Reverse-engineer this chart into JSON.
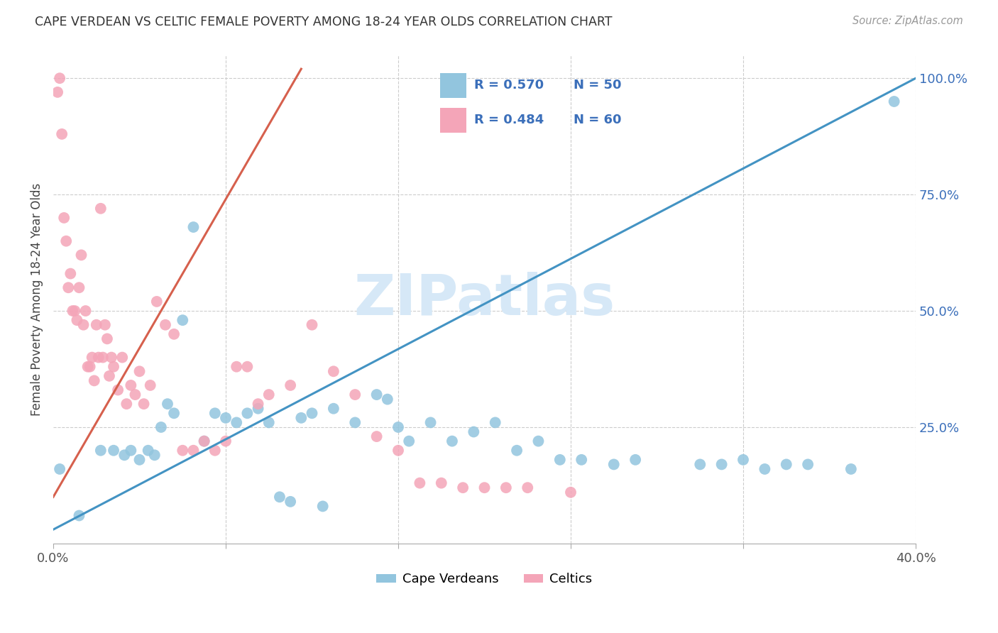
{
  "title": "CAPE VERDEAN VS CELTIC FEMALE POVERTY AMONG 18-24 YEAR OLDS CORRELATION CHART",
  "source": "Source: ZipAtlas.com",
  "ylabel": "Female Poverty Among 18-24 Year Olds",
  "xlim": [
    0.0,
    0.4
  ],
  "ylim": [
    0.0,
    1.05
  ],
  "x_tick_positions": [
    0.0,
    0.08,
    0.16,
    0.24,
    0.32,
    0.4
  ],
  "x_tick_labels": [
    "0.0%",
    "",
    "",
    "",
    "",
    "40.0%"
  ],
  "y_ticks_right": [
    0.25,
    0.5,
    0.75,
    1.0
  ],
  "y_tick_labels_right": [
    "25.0%",
    "50.0%",
    "75.0%",
    "100.0%"
  ],
  "legend_r_blue": "R = 0.570",
  "legend_n_blue": "N = 50",
  "legend_r_pink": "R = 0.484",
  "legend_n_pink": "N = 60",
  "blue_color": "#92c5de",
  "pink_color": "#f4a5b8",
  "line_blue_color": "#4393c3",
  "line_pink_color": "#d6604d",
  "text_blue_color": "#3b6fba",
  "watermark": "ZIPatlas",
  "watermark_color": "#d6e8f7",
  "blue_label": "Cape Verdeans",
  "pink_label": "Celtics",
  "blue_line_x0": 0.0,
  "blue_line_y0": 0.03,
  "blue_line_x1": 0.4,
  "blue_line_y1": 1.0,
  "pink_line_x0": 0.0,
  "pink_line_y0": 0.1,
  "pink_line_x1": 0.115,
  "pink_line_y1": 1.02,
  "cape_verdean_x": [
    0.003,
    0.012,
    0.022,
    0.028,
    0.033,
    0.036,
    0.04,
    0.044,
    0.047,
    0.05,
    0.053,
    0.056,
    0.06,
    0.065,
    0.07,
    0.075,
    0.08,
    0.085,
    0.09,
    0.095,
    0.1,
    0.105,
    0.11,
    0.115,
    0.12,
    0.125,
    0.13,
    0.14,
    0.15,
    0.155,
    0.16,
    0.165,
    0.175,
    0.185,
    0.195,
    0.205,
    0.215,
    0.225,
    0.235,
    0.245,
    0.26,
    0.27,
    0.3,
    0.31,
    0.32,
    0.33,
    0.34,
    0.35,
    0.37,
    0.39
  ],
  "cape_verdean_y": [
    0.16,
    0.06,
    0.2,
    0.2,
    0.19,
    0.2,
    0.18,
    0.2,
    0.19,
    0.25,
    0.3,
    0.28,
    0.48,
    0.68,
    0.22,
    0.28,
    0.27,
    0.26,
    0.28,
    0.29,
    0.26,
    0.1,
    0.09,
    0.27,
    0.28,
    0.08,
    0.29,
    0.26,
    0.32,
    0.31,
    0.25,
    0.22,
    0.26,
    0.22,
    0.24,
    0.26,
    0.2,
    0.22,
    0.18,
    0.18,
    0.17,
    0.18,
    0.17,
    0.17,
    0.18,
    0.16,
    0.17,
    0.17,
    0.16,
    0.95
  ],
  "celtic_x": [
    0.002,
    0.003,
    0.004,
    0.005,
    0.006,
    0.007,
    0.008,
    0.009,
    0.01,
    0.011,
    0.012,
    0.013,
    0.014,
    0.015,
    0.016,
    0.017,
    0.018,
    0.019,
    0.02,
    0.021,
    0.022,
    0.023,
    0.024,
    0.025,
    0.026,
    0.027,
    0.028,
    0.03,
    0.032,
    0.034,
    0.036,
    0.038,
    0.04,
    0.042,
    0.045,
    0.048,
    0.052,
    0.056,
    0.06,
    0.065,
    0.07,
    0.075,
    0.08,
    0.085,
    0.09,
    0.095,
    0.1,
    0.11,
    0.12,
    0.13,
    0.14,
    0.15,
    0.16,
    0.17,
    0.18,
    0.19,
    0.2,
    0.21,
    0.22,
    0.24
  ],
  "celtic_y": [
    0.97,
    1.0,
    0.88,
    0.7,
    0.65,
    0.55,
    0.58,
    0.5,
    0.5,
    0.48,
    0.55,
    0.62,
    0.47,
    0.5,
    0.38,
    0.38,
    0.4,
    0.35,
    0.47,
    0.4,
    0.72,
    0.4,
    0.47,
    0.44,
    0.36,
    0.4,
    0.38,
    0.33,
    0.4,
    0.3,
    0.34,
    0.32,
    0.37,
    0.3,
    0.34,
    0.52,
    0.47,
    0.45,
    0.2,
    0.2,
    0.22,
    0.2,
    0.22,
    0.38,
    0.38,
    0.3,
    0.32,
    0.34,
    0.47,
    0.37,
    0.32,
    0.23,
    0.2,
    0.13,
    0.13,
    0.12,
    0.12,
    0.12,
    0.12,
    0.11
  ]
}
